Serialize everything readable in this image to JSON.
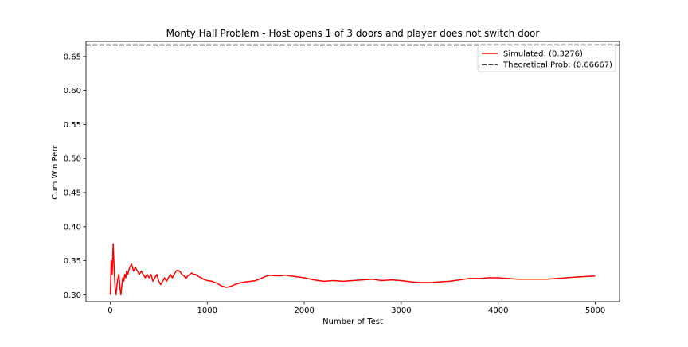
{
  "chart_data": {
    "type": "line",
    "title": "Monty Hall Problem - Host opens 1 of 3 doors and player does not switch door",
    "xlabel": "Number of Test",
    "ylabel": "Cum Win Perc",
    "xlim": [
      -250,
      5250
    ],
    "ylim": [
      0.29,
      0.672
    ],
    "xticks": [
      0,
      1000,
      2000,
      3000,
      4000,
      5000
    ],
    "xtick_labels": [
      "0",
      "1000",
      "2000",
      "3000",
      "4000",
      "5000"
    ],
    "yticks": [
      0.3,
      0.35,
      0.4,
      0.45,
      0.5,
      0.55,
      0.6,
      0.65
    ],
    "ytick_labels": [
      "0.30",
      "0.35",
      "0.40",
      "0.45",
      "0.50",
      "0.55",
      "0.60",
      "0.65"
    ],
    "grid": false,
    "legend_position": "top-right",
    "series": [
      {
        "name": "Simulated: (0.3276)",
        "style": "solid",
        "color": "#ff0000",
        "x": [
          1,
          10,
          20,
          30,
          40,
          50,
          60,
          70,
          80,
          90,
          100,
          110,
          120,
          130,
          140,
          150,
          160,
          170,
          180,
          200,
          220,
          240,
          260,
          280,
          300,
          320,
          340,
          360,
          380,
          400,
          420,
          440,
          460,
          480,
          500,
          520,
          540,
          560,
          580,
          600,
          620,
          640,
          660,
          680,
          700,
          720,
          740,
          760,
          780,
          800,
          820,
          840,
          860,
          880,
          900,
          920,
          940,
          960,
          980,
          1000,
          1050,
          1100,
          1150,
          1200,
          1250,
          1300,
          1350,
          1400,
          1450,
          1500,
          1550,
          1600,
          1650,
          1700,
          1750,
          1800,
          1850,
          1900,
          1950,
          2000,
          2100,
          2200,
          2300,
          2400,
          2500,
          2600,
          2700,
          2800,
          2900,
          3000,
          3100,
          3200,
          3300,
          3400,
          3500,
          3600,
          3700,
          3800,
          3900,
          4000,
          4100,
          4200,
          4300,
          4400,
          4500,
          4600,
          4700,
          4800,
          4900,
          5000
        ],
        "y": [
          0.3,
          0.35,
          0.33,
          0.375,
          0.34,
          0.31,
          0.3,
          0.315,
          0.325,
          0.33,
          0.31,
          0.3,
          0.315,
          0.325,
          0.32,
          0.33,
          0.325,
          0.335,
          0.33,
          0.34,
          0.345,
          0.335,
          0.34,
          0.335,
          0.33,
          0.335,
          0.33,
          0.325,
          0.33,
          0.325,
          0.33,
          0.32,
          0.325,
          0.33,
          0.32,
          0.315,
          0.32,
          0.325,
          0.32,
          0.325,
          0.33,
          0.325,
          0.33,
          0.335,
          0.336,
          0.334,
          0.33,
          0.328,
          0.324,
          0.328,
          0.33,
          0.332,
          0.33,
          0.33,
          0.328,
          0.326,
          0.325,
          0.323,
          0.322,
          0.321,
          0.32,
          0.317,
          0.313,
          0.311,
          0.313,
          0.316,
          0.318,
          0.319,
          0.32,
          0.321,
          0.324,
          0.327,
          0.329,
          0.328,
          0.328,
          0.329,
          0.328,
          0.327,
          0.326,
          0.325,
          0.322,
          0.32,
          0.321,
          0.32,
          0.321,
          0.322,
          0.323,
          0.321,
          0.322,
          0.321,
          0.319,
          0.318,
          0.318,
          0.319,
          0.32,
          0.322,
          0.324,
          0.324,
          0.325,
          0.325,
          0.324,
          0.323,
          0.323,
          0.323,
          0.323,
          0.324,
          0.325,
          0.326,
          0.327,
          0.3276
        ]
      },
      {
        "name": "Theoretical Prob: (0.66667)",
        "style": "dashed",
        "color": "#000000",
        "x": [
          -250,
          5250
        ],
        "y": [
          0.66667,
          0.66667
        ]
      }
    ]
  }
}
